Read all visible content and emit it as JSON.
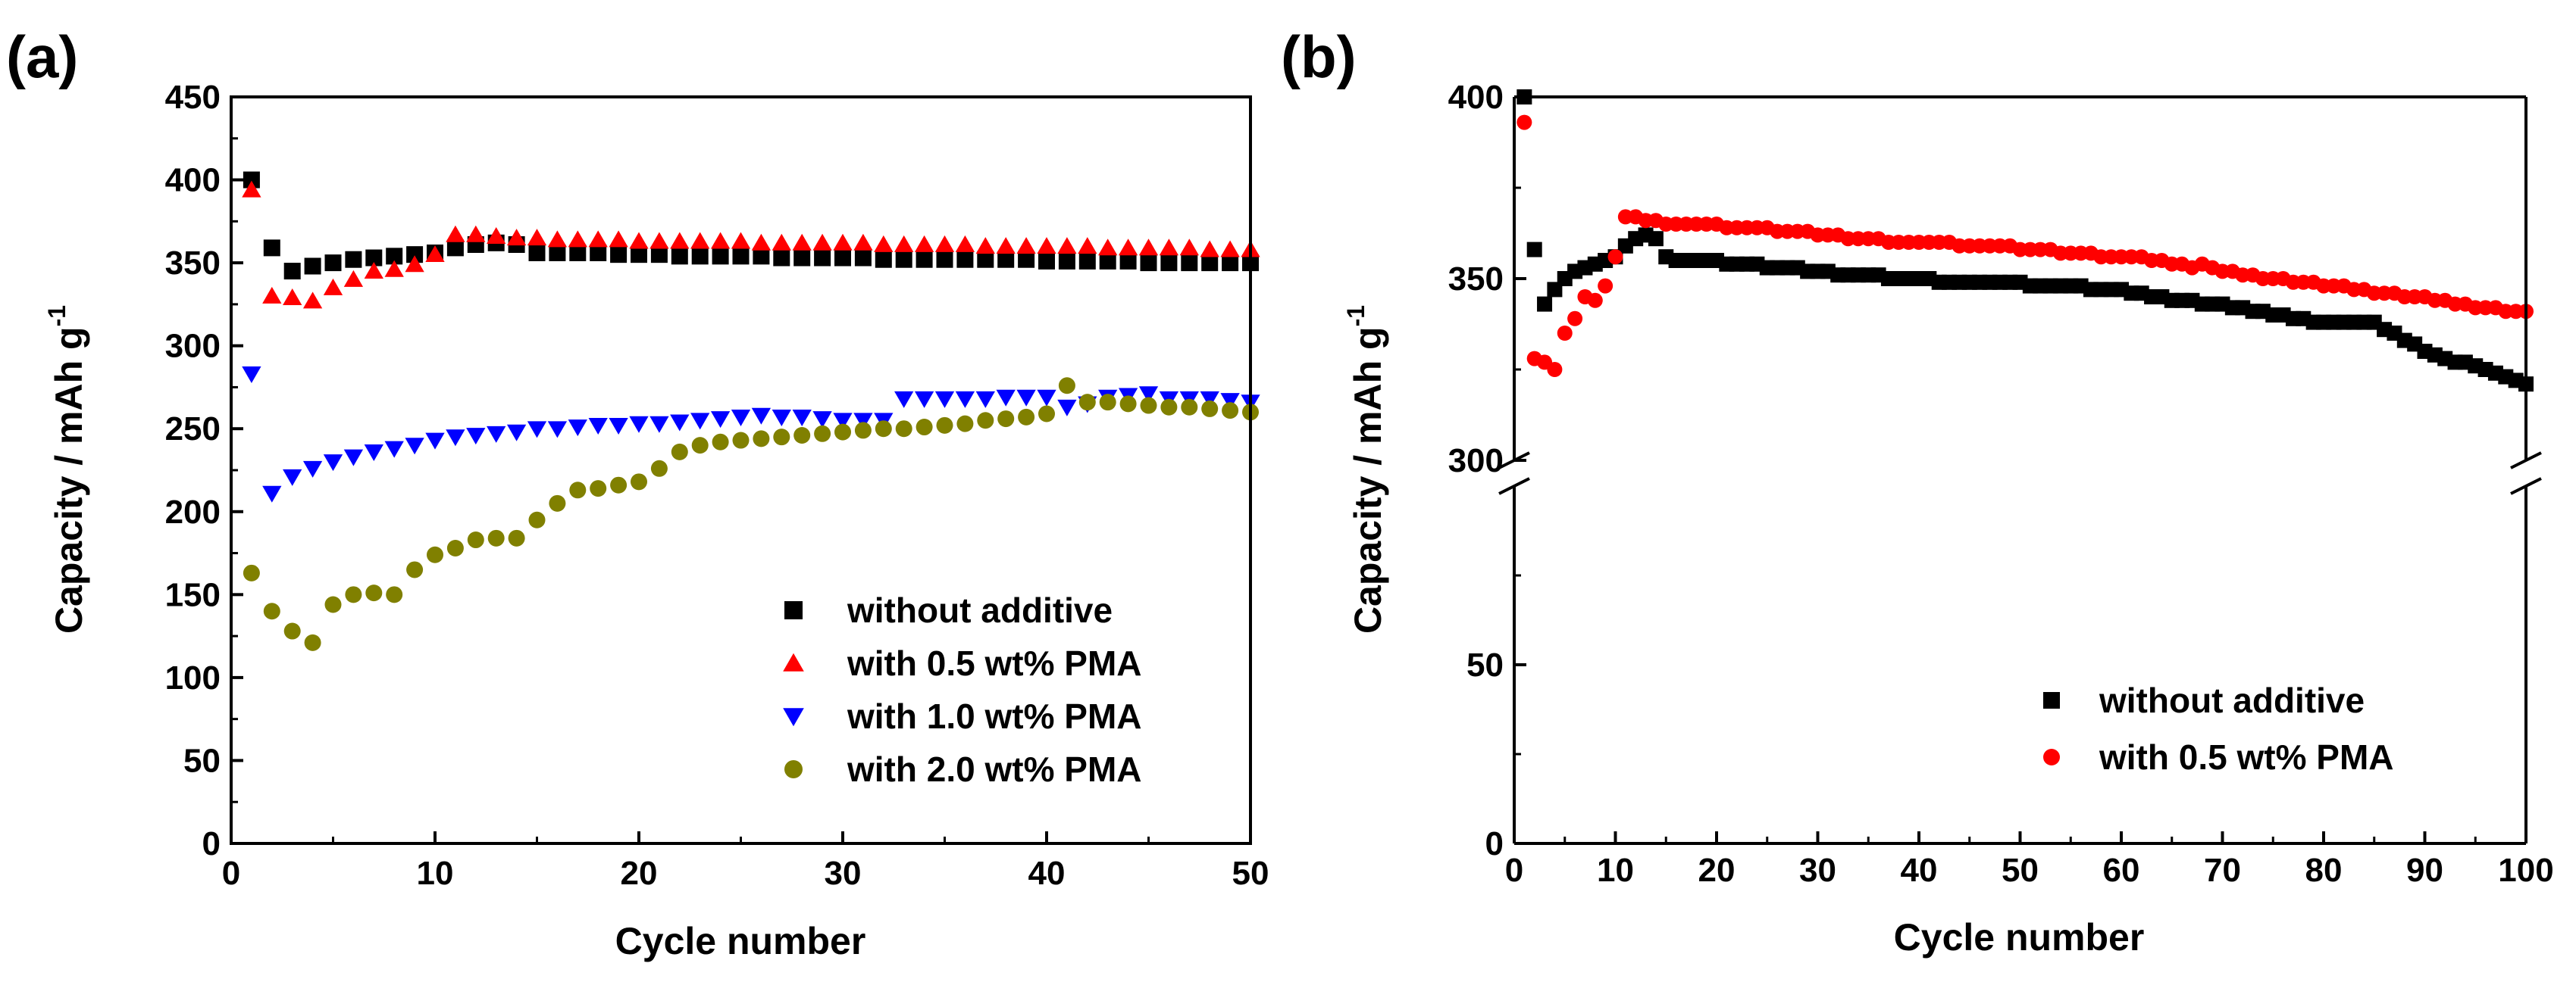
{
  "chart_data": [
    {
      "type": "scatter",
      "panel_label": "(a)",
      "xlabel": "Cycle number",
      "ylabel": "Capacity / mAh g",
      "ylabel_superscript": "-1",
      "xlim": [
        0,
        50
      ],
      "ylim": [
        0,
        450
      ],
      "xticks": [
        0,
        10,
        20,
        30,
        40,
        50
      ],
      "yticks": [
        0,
        50,
        100,
        150,
        200,
        250,
        300,
        350,
        400,
        450
      ],
      "legend_position": "bottom-right",
      "series": [
        {
          "name": "without additive",
          "marker": "square",
          "color": "#000000",
          "x": [
            1,
            2,
            3,
            4,
            5,
            6,
            7,
            8,
            9,
            10,
            11,
            12,
            13,
            14,
            15,
            16,
            17,
            18,
            19,
            20,
            21,
            22,
            23,
            24,
            25,
            26,
            27,
            28,
            29,
            30,
            31,
            32,
            33,
            34,
            35,
            36,
            37,
            38,
            39,
            40,
            41,
            42,
            43,
            44,
            45,
            46,
            47,
            48,
            49,
            50
          ],
          "y": [
            400,
            359,
            345,
            348,
            350,
            352,
            353,
            354,
            355,
            356,
            359,
            361,
            362,
            361,
            356,
            356,
            356,
            356,
            355,
            355,
            355,
            354,
            354,
            354,
            354,
            354,
            353,
            353,
            353,
            353,
            353,
            352,
            352,
            352,
            352,
            352,
            352,
            352,
            352,
            351,
            351,
            351,
            351,
            351,
            350,
            350,
            350,
            350,
            350,
            350
          ]
        },
        {
          "name": "with 0.5 wt% PMA",
          "marker": "triangle-up",
          "color": "#ff0000",
          "x": [
            1,
            2,
            3,
            4,
            5,
            6,
            7,
            8,
            9,
            10,
            11,
            12,
            13,
            14,
            15,
            16,
            17,
            18,
            19,
            20,
            21,
            22,
            23,
            24,
            25,
            26,
            27,
            28,
            29,
            30,
            31,
            32,
            33,
            34,
            35,
            36,
            37,
            38,
            39,
            40,
            41,
            42,
            43,
            44,
            45,
            46,
            47,
            48,
            49,
            50
          ],
          "y": [
            394,
            330,
            329,
            327,
            335,
            340,
            345,
            346,
            349,
            355,
            367,
            367,
            366,
            365,
            365,
            364,
            364,
            364,
            364,
            363,
            363,
            363,
            363,
            363,
            363,
            362,
            362,
            362,
            362,
            362,
            362,
            361,
            361,
            361,
            361,
            361,
            360,
            360,
            360,
            360,
            360,
            360,
            359,
            359,
            359,
            359,
            359,
            358,
            358,
            358
          ]
        },
        {
          "name": "with 1.0 wt% PMA",
          "marker": "triangle-down",
          "color": "#0000ff",
          "x": [
            1,
            2,
            3,
            4,
            5,
            6,
            7,
            8,
            9,
            10,
            11,
            12,
            13,
            14,
            15,
            16,
            17,
            18,
            19,
            20,
            21,
            22,
            23,
            24,
            25,
            26,
            27,
            28,
            29,
            30,
            31,
            32,
            33,
            34,
            35,
            36,
            37,
            38,
            39,
            40,
            41,
            42,
            43,
            44,
            45,
            46,
            47,
            48,
            49,
            50
          ],
          "y": [
            283,
            211,
            221,
            226,
            230,
            233,
            236,
            238,
            240,
            243,
            245,
            246,
            247,
            248,
            250,
            250,
            251,
            252,
            252,
            253,
            253,
            254,
            255,
            256,
            257,
            258,
            257,
            257,
            256,
            255,
            255,
            255,
            268,
            268,
            268,
            268,
            268,
            269,
            269,
            269,
            263,
            265,
            269,
            270,
            271,
            268,
            268,
            268,
            267,
            266
          ]
        },
        {
          "name": "with 2.0 wt% PMA",
          "marker": "circle",
          "color": "#808000",
          "x": [
            1,
            2,
            3,
            4,
            5,
            6,
            7,
            8,
            9,
            10,
            11,
            12,
            13,
            14,
            15,
            16,
            17,
            18,
            19,
            20,
            21,
            22,
            23,
            24,
            25,
            26,
            27,
            28,
            29,
            30,
            31,
            32,
            33,
            34,
            35,
            36,
            37,
            38,
            39,
            40,
            41,
            42,
            43,
            44,
            45,
            46,
            47,
            48,
            49,
            50
          ],
          "y": [
            163,
            140,
            128,
            121,
            144,
            150,
            151,
            150,
            165,
            174,
            178,
            183,
            184,
            184,
            195,
            205,
            213,
            214,
            216,
            218,
            226,
            236,
            240,
            242,
            243,
            244,
            245,
            246,
            247,
            248,
            249,
            250,
            250,
            251,
            252,
            253,
            255,
            256,
            257,
            259,
            276,
            266,
            266,
            265,
            264,
            263,
            263,
            262,
            261,
            260
          ]
        }
      ]
    },
    {
      "type": "scatter",
      "panel_label": "(b)",
      "xlabel": "Cycle number",
      "ylabel": "Capacity / mAh g",
      "ylabel_superscript": "-1",
      "xlim": [
        0,
        100
      ],
      "ylim": [
        0,
        400
      ],
      "broken_y_axis": {
        "break_between": [
          100,
          300
        ],
        "lower_range": [
          0,
          100
        ],
        "upper_range": [
          300,
          400
        ]
      },
      "xticks": [
        0,
        10,
        20,
        30,
        40,
        50,
        60,
        70,
        80,
        90,
        100
      ],
      "yticks": [
        0,
        50,
        300,
        350,
        400
      ],
      "legend_position": "bottom-right",
      "series": [
        {
          "name": "without additive",
          "marker": "square",
          "color": "#000000",
          "x": [
            1,
            2,
            3,
            4,
            5,
            6,
            7,
            8,
            9,
            10,
            11,
            12,
            13,
            14,
            15,
            16,
            17,
            18,
            19,
            20,
            21,
            22,
            23,
            24,
            25,
            26,
            27,
            28,
            29,
            30,
            31,
            32,
            33,
            34,
            35,
            36,
            37,
            38,
            39,
            40,
            41,
            42,
            43,
            44,
            45,
            46,
            47,
            48,
            49,
            50,
            51,
            52,
            53,
            54,
            55,
            56,
            57,
            58,
            59,
            60,
            61,
            62,
            63,
            64,
            65,
            66,
            67,
            68,
            69,
            70,
            71,
            72,
            73,
            74,
            75,
            76,
            77,
            78,
            79,
            80,
            81,
            82,
            83,
            84,
            85,
            86,
            87,
            88,
            89,
            90,
            91,
            92,
            93,
            94,
            95,
            96,
            97,
            98,
            99,
            100
          ],
          "y": [
            400,
            358,
            343,
            347,
            350,
            352,
            353,
            354,
            355,
            356,
            359,
            361,
            362,
            361,
            356,
            355,
            355,
            355,
            355,
            355,
            354,
            354,
            354,
            354,
            353,
            353,
            353,
            353,
            352,
            352,
            352,
            351,
            351,
            351,
            351,
            351,
            350,
            350,
            350,
            350,
            350,
            349,
            349,
            349,
            349,
            349,
            349,
            349,
            349,
            349,
            348,
            348,
            348,
            348,
            348,
            348,
            347,
            347,
            347,
            347,
            346,
            346,
            345,
            345,
            344,
            344,
            344,
            343,
            343,
            343,
            342,
            342,
            341,
            341,
            340,
            340,
            339,
            339,
            338,
            338,
            338,
            338,
            338,
            338,
            338,
            336,
            335,
            333,
            332,
            330,
            329,
            328,
            327,
            327,
            326,
            325,
            324,
            323,
            322,
            321
          ]
        },
        {
          "name": "with 0.5 wt% PMA",
          "marker": "circle",
          "color": "#ff0000",
          "x": [
            1,
            2,
            3,
            4,
            5,
            6,
            7,
            8,
            9,
            10,
            11,
            12,
            13,
            14,
            15,
            16,
            17,
            18,
            19,
            20,
            21,
            22,
            23,
            24,
            25,
            26,
            27,
            28,
            29,
            30,
            31,
            32,
            33,
            34,
            35,
            36,
            37,
            38,
            39,
            40,
            41,
            42,
            43,
            44,
            45,
            46,
            47,
            48,
            49,
            50,
            51,
            52,
            53,
            54,
            55,
            56,
            57,
            58,
            59,
            60,
            61,
            62,
            63,
            64,
            65,
            66,
            67,
            68,
            69,
            70,
            71,
            72,
            73,
            74,
            75,
            76,
            77,
            78,
            79,
            80,
            81,
            82,
            83,
            84,
            85,
            86,
            87,
            88,
            89,
            90,
            91,
            92,
            93,
            94,
            95,
            96,
            97,
            98,
            99,
            100
          ],
          "y": [
            393,
            328,
            327,
            325,
            335,
            339,
            345,
            344,
            348,
            356,
            367,
            367,
            366,
            366,
            365,
            365,
            365,
            365,
            365,
            365,
            364,
            364,
            364,
            364,
            364,
            363,
            363,
            363,
            363,
            362,
            362,
            362,
            361,
            361,
            361,
            361,
            360,
            360,
            360,
            360,
            360,
            360,
            360,
            359,
            359,
            359,
            359,
            359,
            359,
            358,
            358,
            358,
            358,
            357,
            357,
            357,
            357,
            356,
            356,
            356,
            356,
            356,
            355,
            355,
            354,
            354,
            353,
            354,
            353,
            352,
            352,
            351,
            351,
            350,
            350,
            350,
            349,
            349,
            349,
            348,
            348,
            348,
            347,
            347,
            346,
            346,
            346,
            345,
            345,
            345,
            344,
            344,
            343,
            343,
            342,
            342,
            342,
            341,
            341,
            341
          ]
        }
      ]
    }
  ]
}
